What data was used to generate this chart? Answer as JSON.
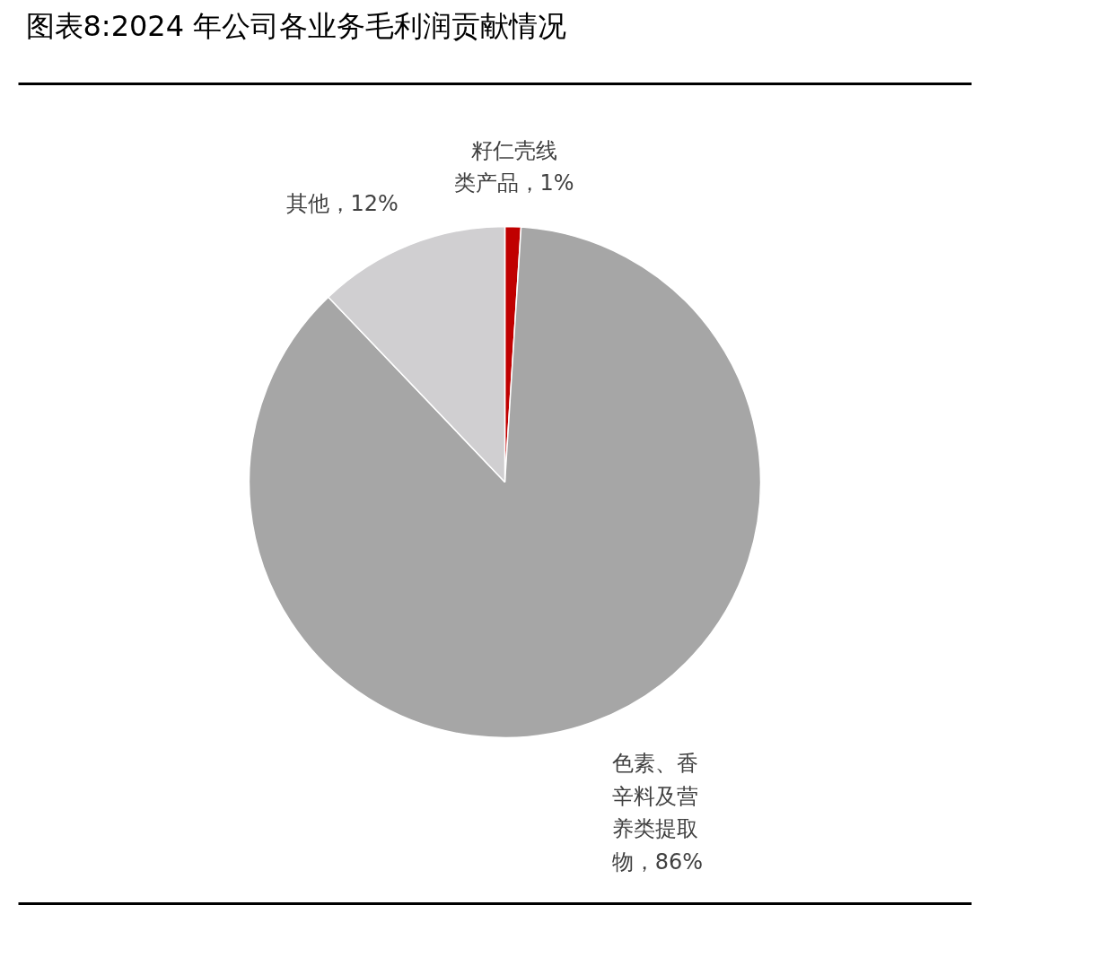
{
  "chart_data": {
    "type": "pie",
    "title": "图表8:2024 年公司各业务毛利润贡献情况",
    "categories": [
      "籽仁壳线类产品",
      "色素、香辛料及营养类提取物",
      "其他"
    ],
    "values": [
      1,
      86,
      12
    ],
    "colors": [
      "#c00000",
      "#a6a6a6",
      "#d0cfd1"
    ],
    "value_labels": [
      "1%",
      "86%",
      "12%"
    ]
  }
}
